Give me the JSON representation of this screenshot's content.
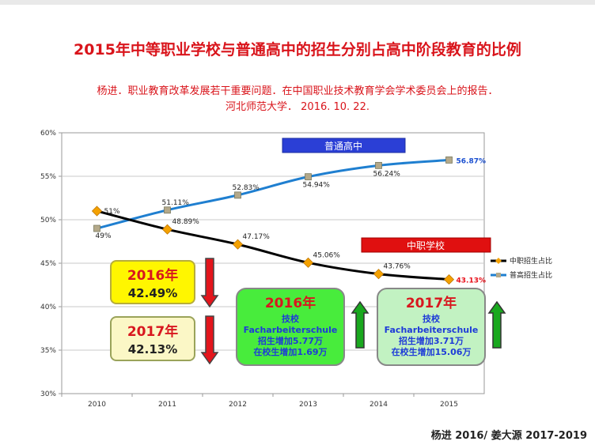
{
  "header": {
    "title": "2015年中等职业学校与普通高中的招生分别占高中阶段教育的比例",
    "source_line1": "杨进．职业教育改革发展若干重要问题．在中国职业技术教育学会学术委员会上的报告．",
    "source_line2": "河北师范大学． 2016. 10. 22."
  },
  "footer": {
    "credit": "杨进 2016/ 姜大源 2017-2019"
  },
  "chart_data": {
    "type": "line",
    "categories": [
      "2010",
      "2011",
      "2012",
      "2013",
      "2014",
      "2015"
    ],
    "ylim": [
      30,
      60
    ],
    "yticks": [
      "30%",
      "35%",
      "40%",
      "45%",
      "50%",
      "55%",
      "60%"
    ],
    "grid": true,
    "legend_position": "right",
    "series": [
      {
        "name": "中职招生占比",
        "color": "#000000",
        "marker_color": "#f4a100",
        "values": [
          51,
          48.89,
          47.17,
          45.06,
          43.76,
          43.13
        ],
        "labels": [
          "51%",
          "48.89%",
          "47.17%",
          "45.06%",
          "43.76%",
          "43.13%"
        ]
      },
      {
        "name": "普高招生占比",
        "color": "#1f7fd0",
        "marker_color": "#b4a98a",
        "values": [
          49,
          51.11,
          52.83,
          54.94,
          56.24,
          56.87
        ],
        "labels": [
          "49%",
          "51.11%",
          "52.83%",
          "54.94%",
          "56.24%",
          "56.87%"
        ]
      }
    ],
    "series_banners": [
      "普通高中",
      "中职学校"
    ],
    "annotations": {
      "box_2016": {
        "year": "2016年",
        "value": "42.49%"
      },
      "box_2017": {
        "year": "2017年",
        "value": "42.13%"
      },
      "green_2016": {
        "year": "2016年",
        "lines": [
          "技校",
          "Facharbeiterschule",
          "招生增加5.77万",
          "在校生增加1.69万"
        ]
      },
      "green_2017": {
        "year": "2017年",
        "lines": [
          "技校",
          "Facharbeiterschule",
          "招生增加3.71万",
          "在校生增加15.06万"
        ]
      }
    }
  }
}
